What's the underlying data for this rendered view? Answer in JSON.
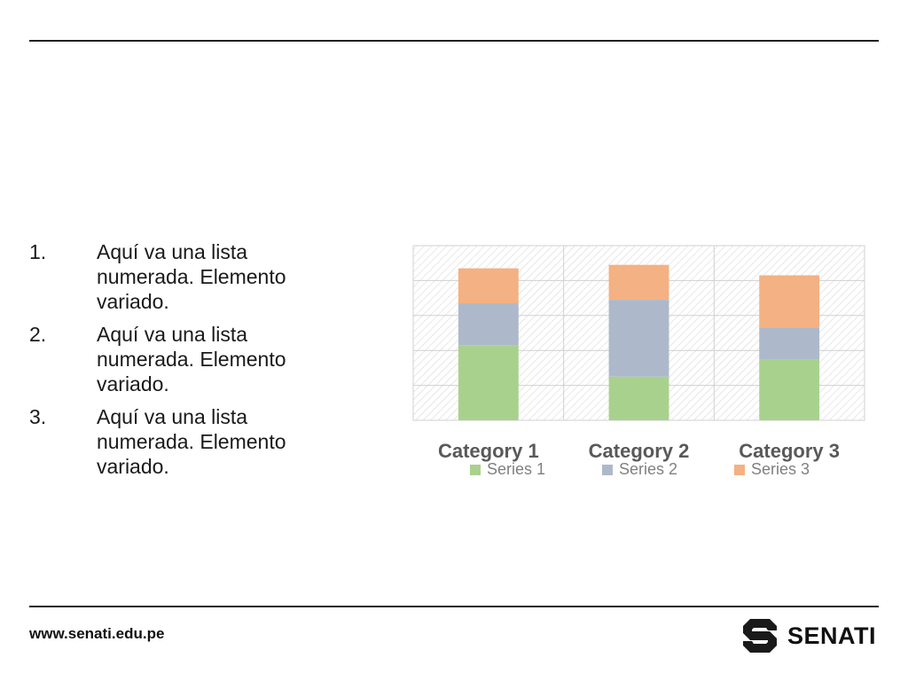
{
  "list": [
    {
      "num": "1.",
      "text": "Aquí va una lista numerada. Elemento variado."
    },
    {
      "num": "2.",
      "text": "Aquí va una lista numerada. Elemento variado."
    },
    {
      "num": "3.",
      "text": "Aquí va una lista numerada. Elemento variado."
    }
  ],
  "chart_data": {
    "type": "bar",
    "stacked": true,
    "categories": [
      "Category 1",
      "Category 2",
      "Category 3"
    ],
    "series": [
      {
        "name": "Series 1",
        "values": [
          4.3,
          2.5,
          3.5
        ],
        "color": "#a9d18e"
      },
      {
        "name": "Series 2",
        "values": [
          2.4,
          4.4,
          1.8
        ],
        "color": "#adb9ca"
      },
      {
        "name": "Series 3",
        "values": [
          2.0,
          2.0,
          3.0
        ],
        "color": "#f4b183"
      }
    ],
    "ylim": [
      0,
      10
    ],
    "grid": true,
    "legend": "bottom"
  },
  "footer": {
    "url": "www.senati.edu.pe",
    "logo_text": "SENATI"
  }
}
